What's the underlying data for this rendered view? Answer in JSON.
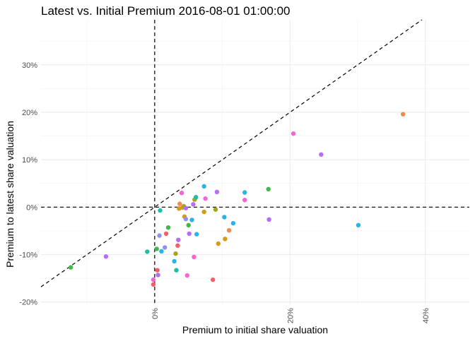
{
  "chart_data": {
    "type": "scatter",
    "title": "Latest vs. Initial Premium 2016-08-01 01:00:00",
    "xlabel": "Premium to initial share valuation",
    "ylabel": "Premium to latest share valuation",
    "xlim": [
      -0.168,
      0.465
    ],
    "ylim": [
      -0.205,
      0.395
    ],
    "x_ticks": [
      {
        "value": 0.0,
        "label": "0%"
      },
      {
        "value": 0.2,
        "label": "20%"
      },
      {
        "value": 0.4,
        "label": "40%"
      }
    ],
    "y_ticks": [
      {
        "value": -0.2,
        "label": "-20%"
      },
      {
        "value": -0.1,
        "label": "-10%"
      },
      {
        "value": 0.0,
        "label": "0%"
      },
      {
        "value": 0.1,
        "label": "10%"
      },
      {
        "value": 0.2,
        "label": "20%"
      },
      {
        "value": 0.3,
        "label": "30%"
      }
    ],
    "x_minor_gridlines": [
      -0.1,
      0.1,
      0.3
    ],
    "y_minor_gridlines": [
      -0.15,
      -0.05,
      0.05,
      0.15,
      0.25,
      0.35
    ],
    "reference_lines": [
      {
        "type": "vline",
        "x": 0
      },
      {
        "type": "hline",
        "y": 0
      },
      {
        "type": "diagonal",
        "slope": 1,
        "intercept": 0
      }
    ],
    "grid": true,
    "legend": "none",
    "points": [
      {
        "x": -0.124,
        "y": -0.127,
        "color": "#3fb84a"
      },
      {
        "x": -0.072,
        "y": -0.104,
        "color": "#b66cf4"
      },
      {
        "x": -0.011,
        "y": -0.094,
        "color": "#1fbca6"
      },
      {
        "x": -0.002,
        "y": -0.163,
        "color": "#f0606a"
      },
      {
        "x": -0.002,
        "y": -0.153,
        "color": "#f565d4"
      },
      {
        "x": 0.003,
        "y": -0.088,
        "color": "#3fb84a"
      },
      {
        "x": 0.004,
        "y": -0.133,
        "color": "#f0606a"
      },
      {
        "x": 0.005,
        "y": -0.143,
        "color": "#b66cf4"
      },
      {
        "x": 0.007,
        "y": -0.06,
        "color": "#8d93f4"
      },
      {
        "x": 0.008,
        "y": -0.007,
        "color": "#1fbca6"
      },
      {
        "x": 0.01,
        "y": -0.093,
        "color": "#2bb3e8"
      },
      {
        "x": 0.015,
        "y": -0.085,
        "color": "#8d93f4"
      },
      {
        "x": 0.017,
        "y": -0.056,
        "color": "#f0606a"
      },
      {
        "x": 0.02,
        "y": -0.043,
        "color": "#3fb84a"
      },
      {
        "x": 0.029,
        "y": -0.114,
        "color": "#2bb3e8"
      },
      {
        "x": 0.031,
        "y": -0.098,
        "color": "#a6a619"
      },
      {
        "x": 0.032,
        "y": -0.133,
        "color": "#1fbca6"
      },
      {
        "x": 0.034,
        "y": -0.081,
        "color": "#f0606a"
      },
      {
        "x": 0.035,
        "y": -0.069,
        "color": "#b66cf4"
      },
      {
        "x": 0.036,
        "y": -0.003,
        "color": "#d69a18"
      },
      {
        "x": 0.037,
        "y": 0.007,
        "color": "#f08b4b"
      },
      {
        "x": 0.04,
        "y": 0.03,
        "color": "#f565d4"
      },
      {
        "x": 0.041,
        "y": -0.001,
        "color": "#d69a18"
      },
      {
        "x": 0.043,
        "y": 0.002,
        "color": "#a6a619"
      },
      {
        "x": 0.044,
        "y": -0.02,
        "color": "#d69a18"
      },
      {
        "x": 0.046,
        "y": -0.025,
        "color": "#8d93f4"
      },
      {
        "x": 0.046,
        "y": -0.002,
        "color": "#b66cf4"
      },
      {
        "x": 0.048,
        "y": -0.144,
        "color": "#f565d4"
      },
      {
        "x": 0.05,
        "y": -0.038,
        "color": "#3fb84a"
      },
      {
        "x": 0.051,
        "y": -0.056,
        "color": "#b66cf4"
      },
      {
        "x": 0.055,
        "y": -0.027,
        "color": "#2bb3e8"
      },
      {
        "x": 0.057,
        "y": 0.006,
        "color": "#b66cf4"
      },
      {
        "x": 0.058,
        "y": -0.105,
        "color": "#f565d4"
      },
      {
        "x": 0.059,
        "y": 0.016,
        "color": "#a6a619"
      },
      {
        "x": 0.061,
        "y": 0.021,
        "color": "#1fbca6"
      },
      {
        "x": 0.062,
        "y": -0.057,
        "color": "#2bb3e8"
      },
      {
        "x": 0.073,
        "y": 0.044,
        "color": "#2bb3e8"
      },
      {
        "x": 0.073,
        "y": -0.01,
        "color": "#d69a18"
      },
      {
        "x": 0.075,
        "y": 0.018,
        "color": "#f565d4"
      },
      {
        "x": 0.086,
        "y": -0.153,
        "color": "#f0606a"
      },
      {
        "x": 0.09,
        "y": -0.005,
        "color": "#a6a619"
      },
      {
        "x": 0.092,
        "y": 0.032,
        "color": "#b66cf4"
      },
      {
        "x": 0.094,
        "y": -0.077,
        "color": "#d69a18"
      },
      {
        "x": 0.103,
        "y": -0.021,
        "color": "#2bb3e8"
      },
      {
        "x": 0.104,
        "y": -0.067,
        "color": "#d69a18"
      },
      {
        "x": 0.11,
        "y": -0.049,
        "color": "#f08b4b"
      },
      {
        "x": 0.116,
        "y": -0.034,
        "color": "#2bb3e8"
      },
      {
        "x": 0.133,
        "y": 0.031,
        "color": "#2bb3e8"
      },
      {
        "x": 0.133,
        "y": 0.015,
        "color": "#f565d4"
      },
      {
        "x": 0.168,
        "y": 0.038,
        "color": "#3fb84a"
      },
      {
        "x": 0.169,
        "y": -0.026,
        "color": "#b66cf4"
      },
      {
        "x": 0.205,
        "y": 0.155,
        "color": "#f565d4"
      },
      {
        "x": 0.246,
        "y": 0.111,
        "color": "#b66cf4"
      },
      {
        "x": 0.301,
        "y": -0.038,
        "color": "#2bb3e8"
      },
      {
        "x": 0.367,
        "y": 0.196,
        "color": "#f08b4b"
      }
    ]
  }
}
